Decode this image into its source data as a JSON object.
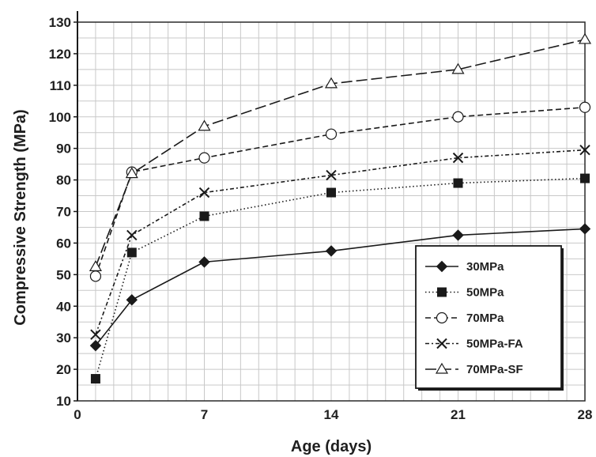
{
  "chart_data": {
    "type": "line",
    "xlabel": "Age (days)",
    "ylabel": "Compressive Strength (MPa)",
    "xlim": [
      0,
      28
    ],
    "ylim": [
      10,
      130
    ],
    "xticks": [
      0,
      7,
      14,
      21,
      28
    ],
    "yticks": [
      10,
      20,
      30,
      40,
      50,
      60,
      70,
      80,
      90,
      100,
      110,
      120,
      130
    ],
    "grid": true,
    "legend_position": "bottom-right",
    "x": [
      1,
      3,
      7,
      14,
      21,
      28
    ],
    "series": [
      {
        "name": "30MPa",
        "marker": "diamond",
        "line": "solid",
        "values": [
          27.5,
          42,
          54,
          57.5,
          62.5,
          64.5
        ]
      },
      {
        "name": "50MPa",
        "marker": "square",
        "line": "dotted",
        "values": [
          17,
          57,
          68.5,
          76,
          79,
          80.5
        ]
      },
      {
        "name": "70MPa",
        "marker": "circle",
        "line": "dashed",
        "values": [
          49.5,
          82.5,
          87,
          94.5,
          100,
          103
        ]
      },
      {
        "name": "50MPa-FA",
        "marker": "x",
        "line": "dash-dot",
        "values": [
          31,
          62.5,
          76,
          81.5,
          87,
          89.5
        ]
      },
      {
        "name": "70MPa-SF",
        "marker": "triangle",
        "line": "long-dash",
        "values": [
          52.5,
          82,
          97,
          110.5,
          115,
          124.5
        ]
      }
    ]
  }
}
